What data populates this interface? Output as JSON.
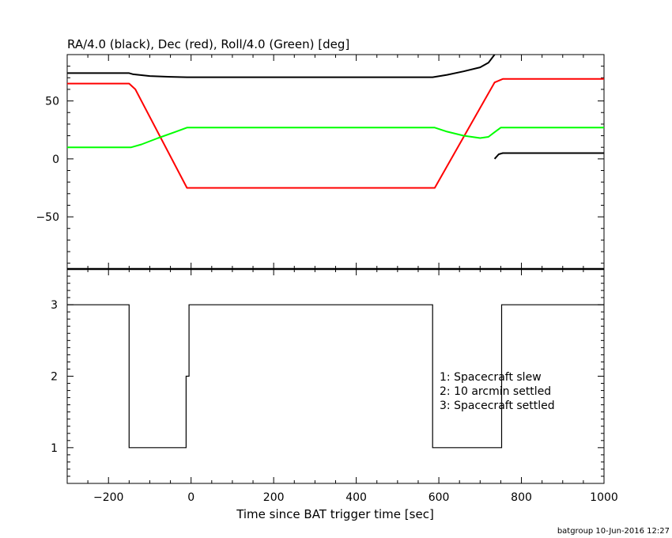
{
  "chart_data": [
    {
      "type": "line",
      "title": "RA/4.0 (black), Dec (red), Roll/4.0 (Green) [deg]",
      "xlim": [
        -300,
        1000
      ],
      "ylim": [
        -95,
        90
      ],
      "y_ticks": [
        -50,
        0,
        50
      ],
      "y_tick_labels": [
        "−50",
        "0",
        "50"
      ],
      "grid": false,
      "series": [
        {
          "color": "#000000",
          "segments": [
            [
              [
                -300,
                74
              ],
              [
                -150,
                74
              ],
              [
                -140,
                73
              ],
              [
                -100,
                71.5
              ],
              [
                -50,
                70.8
              ],
              [
                -10,
                70.5
              ],
              [
                585,
                70.5
              ],
              [
                620,
                72.5
              ],
              [
                660,
                75.5
              ],
              [
                700,
                79
              ],
              [
                720,
                83
              ],
              [
                735,
                90
              ]
            ],
            [
              [
                735,
                0
              ],
              [
                745,
                4
              ],
              [
                755,
                5
              ],
              [
                1000,
                5
              ]
            ]
          ]
        },
        {
          "color": "#ff0000",
          "segments": [
            [
              [
                -300,
                65
              ],
              [
                -150,
                65
              ],
              [
                -135,
                60
              ],
              [
                -10,
                -25
              ],
              [
                590,
                -25
              ],
              [
                735,
                66
              ],
              [
                755,
                69
              ],
              [
                1000,
                69
              ]
            ]
          ]
        },
        {
          "color": "#00ff00",
          "segments": [
            [
              [
                -300,
                10
              ],
              [
                -145,
                10
              ],
              [
                -120,
                12.5
              ],
              [
                -80,
                18
              ],
              [
                -40,
                23
              ],
              [
                -10,
                27
              ],
              [
                590,
                27
              ],
              [
                620,
                23.5
              ],
              [
                660,
                20
              ],
              [
                700,
                18
              ],
              [
                720,
                19
              ],
              [
                735,
                23
              ],
              [
                750,
                27
              ],
              [
                1000,
                27
              ]
            ]
          ]
        }
      ]
    },
    {
      "type": "line",
      "xlabel": "Time since BAT trigger time [sec]",
      "xlim": [
        -300,
        1000
      ],
      "ylim": [
        0.5,
        3.5
      ],
      "x_ticks": [
        -200,
        0,
        200,
        400,
        600,
        800,
        1000
      ],
      "x_tick_labels": [
        "−200",
        "0",
        "200",
        "400",
        "600",
        "800",
        "1000"
      ],
      "y_ticks": [
        1,
        2,
        3
      ],
      "y_tick_labels": [
        "1",
        "2",
        "3"
      ],
      "grid": false,
      "series": [
        {
          "color": "#000000",
          "step": true,
          "points": [
            [
              -300,
              3
            ],
            [
              -150,
              3
            ],
            [
              -150,
              1
            ],
            [
              -12,
              1
            ],
            [
              -12,
              2
            ],
            [
              -5,
              2
            ],
            [
              -5,
              3
            ],
            [
              585,
              3
            ],
            [
              585,
              1
            ],
            [
              752,
              1
            ],
            [
              752,
              3
            ],
            [
              1000,
              3
            ]
          ]
        }
      ],
      "annotations": [
        "1: Spacecraft slew",
        "2: 10 arcmin settled",
        "3: Spacecraft settled"
      ]
    }
  ],
  "footer": "batgroup 10-Jun-2016 12:27"
}
